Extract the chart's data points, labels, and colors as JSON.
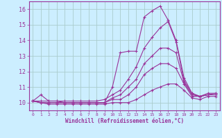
{
  "title": "",
  "xlabel": "Windchill (Refroidissement éolien,°C)",
  "background_color": "#cceeff",
  "grid_color": "#aacccc",
  "line_color": "#993399",
  "xlim": [
    -0.5,
    23.5
  ],
  "ylim": [
    9.5,
    16.5
  ],
  "yticks": [
    10,
    11,
    12,
    13,
    14,
    15,
    16
  ],
  "xticks": [
    0,
    1,
    2,
    3,
    4,
    5,
    6,
    7,
    8,
    9,
    10,
    11,
    12,
    13,
    14,
    15,
    16,
    17,
    18,
    19,
    20,
    21,
    22,
    23
  ],
  "lines": [
    {
      "x": [
        0,
        1,
        2,
        3,
        4,
        5,
        6,
        7,
        8,
        9,
        10,
        11,
        12,
        13,
        14,
        15,
        16,
        17,
        18,
        19,
        20,
        21,
        22,
        23
      ],
      "y": [
        10.1,
        10.5,
        10.1,
        10.1,
        10.0,
        10.0,
        10.0,
        10.0,
        10.0,
        10.0,
        11.0,
        13.2,
        13.3,
        13.3,
        15.5,
        15.9,
        16.2,
        15.3,
        14.0,
        11.6,
        10.6,
        10.4,
        10.6,
        10.6
      ]
    },
    {
      "x": [
        0,
        1,
        2,
        3,
        4,
        5,
        6,
        7,
        8,
        9,
        10,
        11,
        12,
        13,
        14,
        15,
        16,
        17,
        18,
        19,
        20,
        21,
        22,
        23
      ],
      "y": [
        10.1,
        10.1,
        10.1,
        10.1,
        10.1,
        10.1,
        10.1,
        10.1,
        10.1,
        10.2,
        10.5,
        10.8,
        11.5,
        12.3,
        13.5,
        14.2,
        14.8,
        15.2,
        13.9,
        11.4,
        10.6,
        10.4,
        10.5,
        10.6
      ]
    },
    {
      "x": [
        0,
        1,
        2,
        3,
        4,
        5,
        6,
        7,
        8,
        9,
        10,
        11,
        12,
        13,
        14,
        15,
        16,
        17,
        18,
        19,
        20,
        21,
        22,
        23
      ],
      "y": [
        10.1,
        10.0,
        10.0,
        10.0,
        10.0,
        10.0,
        10.0,
        10.0,
        10.0,
        10.0,
        10.3,
        10.5,
        11.0,
        11.5,
        12.5,
        13.0,
        13.5,
        13.5,
        13.2,
        11.3,
        10.5,
        10.4,
        10.5,
        10.5
      ]
    },
    {
      "x": [
        0,
        1,
        2,
        3,
        4,
        5,
        6,
        7,
        8,
        9,
        10,
        11,
        12,
        13,
        14,
        15,
        16,
        17,
        18,
        19,
        20,
        21,
        22,
        23
      ],
      "y": [
        10.1,
        10.0,
        10.0,
        10.0,
        10.0,
        10.0,
        10.0,
        10.0,
        10.0,
        10.0,
        10.2,
        10.2,
        10.5,
        11.0,
        11.8,
        12.2,
        12.5,
        12.5,
        12.2,
        11.2,
        10.4,
        10.4,
        10.5,
        10.5
      ]
    },
    {
      "x": [
        0,
        1,
        2,
        3,
        4,
        5,
        6,
        7,
        8,
        9,
        10,
        11,
        12,
        13,
        14,
        15,
        16,
        17,
        18,
        19,
        20,
        21,
        22,
        23
      ],
      "y": [
        10.1,
        10.0,
        9.9,
        9.9,
        9.9,
        9.9,
        9.9,
        9.9,
        9.9,
        9.9,
        10.0,
        10.0,
        10.0,
        10.2,
        10.5,
        10.8,
        11.0,
        11.2,
        11.2,
        10.8,
        10.3,
        10.2,
        10.4,
        10.4
      ]
    }
  ]
}
